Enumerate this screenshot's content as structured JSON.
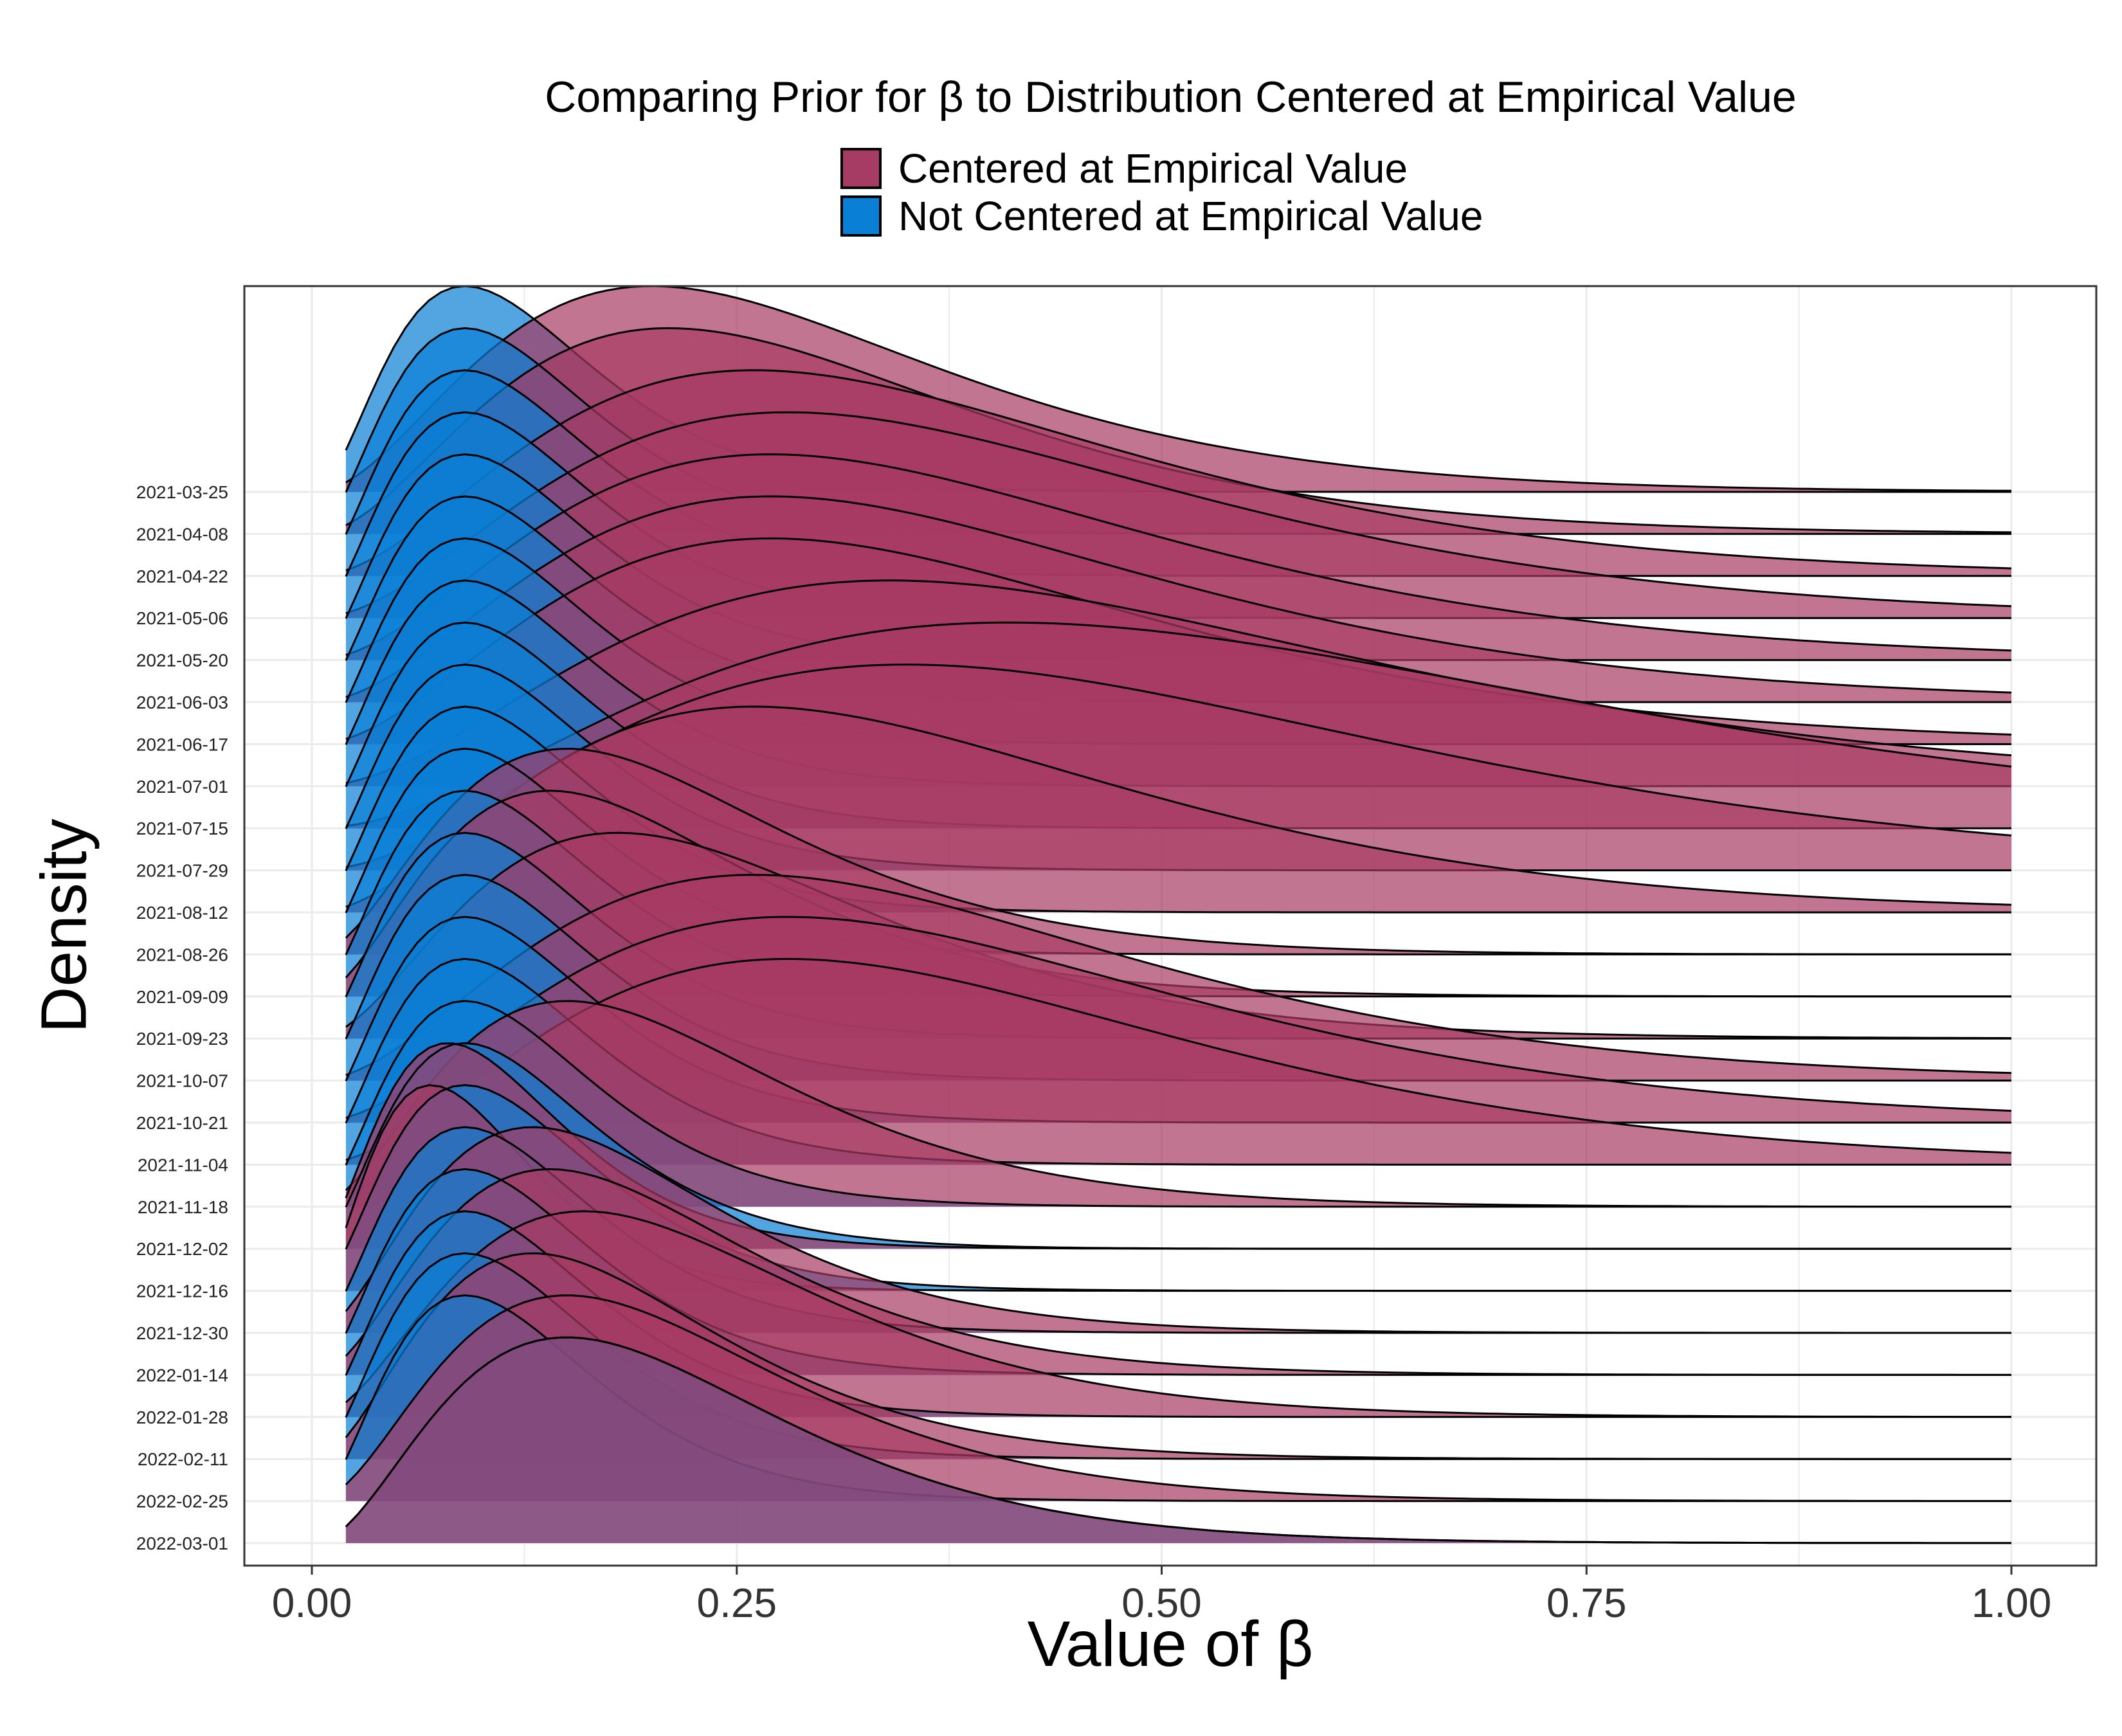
{
  "chart_data": {
    "type": "area",
    "subtype": "ridgeline",
    "title": "Comparing Prior for β to Distribution Centered at Empirical Value",
    "xlabel": "Value of β",
    "ylabel": "Density",
    "xlim": [
      0,
      1
    ],
    "x_ticks": [
      "0.00",
      "0.25",
      "0.50",
      "0.75",
      "1.00"
    ],
    "grid": true,
    "legend": {
      "placement": "top",
      "entries": [
        {
          "name": "Centered at Empirical Value",
          "color": "#a63b63"
        },
        {
          "name": "Not Centered at Empirical Value",
          "color": "#0a7fd6"
        }
      ]
    },
    "rows": [
      {
        "date": "2021-03-25",
        "centered_peak": 0.2,
        "not_centered_peak": 0.09
      },
      {
        "date": "2021-04-08",
        "centered_peak": 0.21,
        "not_centered_peak": 0.09
      },
      {
        "date": "2021-04-22",
        "centered_peak": 0.26,
        "not_centered_peak": 0.09
      },
      {
        "date": "2021-05-06",
        "centered_peak": 0.28,
        "not_centered_peak": 0.09
      },
      {
        "date": "2021-05-20",
        "centered_peak": 0.27,
        "not_centered_peak": 0.09
      },
      {
        "date": "2021-06-03",
        "centered_peak": 0.27,
        "not_centered_peak": 0.09
      },
      {
        "date": "2021-06-17",
        "centered_peak": 0.27,
        "not_centered_peak": 0.09
      },
      {
        "date": "2021-07-01",
        "centered_peak": 0.34,
        "not_centered_peak": 0.09
      },
      {
        "date": "2021-07-15",
        "centered_peak": 0.41,
        "not_centered_peak": 0.09
      },
      {
        "date": "2021-07-29",
        "centered_peak": 0.35,
        "not_centered_peak": 0.09
      },
      {
        "date": "2021-08-12",
        "centered_peak": 0.26,
        "not_centered_peak": 0.09
      },
      {
        "date": "2021-08-26",
        "centered_peak": 0.15,
        "not_centered_peak": 0.09
      },
      {
        "date": "2021-09-09",
        "centered_peak": 0.14,
        "not_centered_peak": 0.09
      },
      {
        "date": "2021-09-23",
        "centered_peak": 0.18,
        "not_centered_peak": 0.09
      },
      {
        "date": "2021-10-07",
        "centered_peak": 0.26,
        "not_centered_peak": 0.09
      },
      {
        "date": "2021-10-21",
        "centered_peak": 0.28,
        "not_centered_peak": 0.09
      },
      {
        "date": "2021-11-04",
        "centered_peak": 0.28,
        "not_centered_peak": 0.09
      },
      {
        "date": "2021-11-18",
        "centered_peak": 0.15,
        "not_centered_peak": 0.09
      },
      {
        "date": "2021-12-02",
        "centered_peak": 0.08,
        "not_centered_peak": 0.09
      },
      {
        "date": "2021-12-16",
        "centered_peak": 0.07,
        "not_centered_peak": 0.09
      },
      {
        "date": "2021-12-30",
        "centered_peak": 0.13,
        "not_centered_peak": 0.09
      },
      {
        "date": "2022-01-14",
        "centered_peak": 0.14,
        "not_centered_peak": 0.09
      },
      {
        "date": "2022-01-28",
        "centered_peak": 0.16,
        "not_centered_peak": 0.09
      },
      {
        "date": "2022-02-11",
        "centered_peak": 0.13,
        "not_centered_peak": 0.09
      },
      {
        "date": "2022-02-25",
        "centered_peak": 0.15,
        "not_centered_peak": 0.09
      },
      {
        "date": "2022-03-01",
        "centered_peak": 0.15,
        "not_centered_peak": 0.15
      }
    ]
  }
}
